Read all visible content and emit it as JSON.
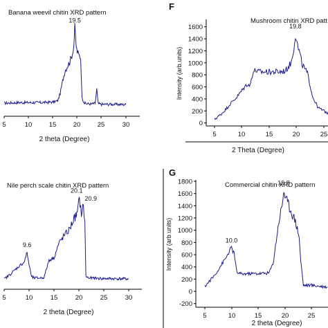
{
  "panel_letters": [
    "F",
    "G"
  ],
  "chart_data": [
    {
      "type": "line",
      "title": "Banana weevil chitin XRD pattern",
      "xlabel": "2 theta (Degree)",
      "ylabel": "",
      "xlim": [
        5,
        30
      ],
      "ylim": [
        0,
        1700
      ],
      "xticks": [
        "5",
        "10",
        "15",
        "20",
        "25",
        "30"
      ],
      "yticks": [],
      "peak_labels": [
        {
          "x": 19.5,
          "label": "19.5"
        }
      ],
      "color": "#1a1a8c",
      "series": [
        {
          "x": [
            5,
            8,
            10,
            12,
            14,
            15,
            16,
            16.5,
            17,
            17.5,
            18,
            18.5,
            19,
            19.3,
            19.5,
            19.8,
            20,
            20.3,
            20.7,
            21,
            21.5,
            22,
            23,
            23.7,
            24,
            24.3,
            25,
            27,
            30
          ],
          "y": [
            230,
            240,
            240,
            240,
            245,
            250,
            270,
            400,
            620,
            800,
            880,
            960,
            1100,
            1250,
            1550,
            1220,
            1130,
            1080,
            1030,
            320,
            230,
            220,
            215,
            230,
            480,
            220,
            210,
            210,
            205
          ]
        }
      ]
    },
    {
      "type": "line",
      "title": "Mushroom chitin XRD patt",
      "xlabel": "2 Theta (Degree)",
      "ylabel": "Intensity (arb.units)",
      "xlim": [
        3.5,
        27
      ],
      "ylim": [
        -50,
        1700
      ],
      "xticks": [
        "5",
        "10",
        "15",
        "20",
        "25"
      ],
      "yticks": [
        "0",
        "200",
        "400",
        "600",
        "800",
        "1000",
        "1200",
        "1400",
        "1600"
      ],
      "peak_labels": [
        {
          "x": 19.8,
          "label": "19.8"
        }
      ],
      "color": "#1a1a8c",
      "series": [
        {
          "x": [
            5,
            6,
            7,
            8,
            9,
            10,
            11,
            11.5,
            12,
            12.5,
            13,
            15,
            17,
            18,
            19,
            19.5,
            19.8,
            20.2,
            20.6,
            21,
            22,
            23,
            24,
            25,
            26,
            27
          ],
          "y": [
            60,
            130,
            220,
            330,
            420,
            540,
            650,
            620,
            840,
            880,
            850,
            850,
            850,
            870,
            1000,
            1250,
            1480,
            1280,
            1150,
            980,
            820,
            420,
            250,
            200,
            150,
            130
          ]
        }
      ]
    },
    {
      "type": "line",
      "title": "Nile perch scale chitin XRD pattern",
      "xlabel": "2 theta (Degree)",
      "ylabel": "",
      "xlim": [
        5,
        30
      ],
      "ylim": [
        0,
        1700
      ],
      "xticks": [
        "5",
        "10",
        "15",
        "20",
        "25",
        "30"
      ],
      "yticks": [],
      "peak_labels": [
        {
          "x": 9.6,
          "label": "9.6"
        },
        {
          "x": 20.1,
          "label": "20.1"
        },
        {
          "x": 20.9,
          "label": "20.9"
        }
      ],
      "color": "#1a1a8c",
      "series": [
        {
          "x": [
            5,
            6,
            7,
            8,
            9,
            9.6,
            10,
            10.5,
            11,
            12,
            13,
            14,
            15,
            16,
            17,
            18,
            19,
            19.7,
            20.1,
            20.5,
            20.9,
            21.2,
            21.4,
            22,
            25,
            30
          ],
          "y": [
            180,
            250,
            330,
            410,
            480,
            650,
            440,
            220,
            200,
            200,
            210,
            520,
            560,
            820,
            950,
            1050,
            1250,
            1350,
            1620,
            1350,
            1480,
            1200,
            230,
            200,
            190,
            185
          ]
        }
      ]
    },
    {
      "type": "line",
      "title": "Commercial chitin XRD pattern",
      "xlabel": "2 theta (Degree)",
      "ylabel": "Intensity (arb.units)",
      "xlim": [
        2.5,
        28
      ],
      "ylim": [
        -260,
        1800
      ],
      "xticks": [
        "5",
        "10",
        "15",
        "20",
        "25"
      ],
      "yticks": [
        "-200",
        "0",
        "200",
        "400",
        "600",
        "800",
        "1000",
        "1200",
        "1400",
        "1600",
        "1800"
      ],
      "peak_labels": [
        {
          "x": 10.0,
          "label": "10.0"
        },
        {
          "x": 19.8,
          "label": "19.8"
        }
      ],
      "color": "#1a1a8c",
      "series": [
        {
          "x": [
            5,
            6,
            7,
            8,
            9,
            9.5,
            10,
            10.5,
            11,
            12,
            13,
            15,
            17,
            17.8,
            18.5,
            19,
            19.5,
            19.8,
            20.3,
            21,
            22,
            22.7,
            23,
            23.5,
            25,
            27,
            28
          ],
          "y": [
            80,
            180,
            280,
            420,
            550,
            640,
            710,
            620,
            310,
            280,
            290,
            290,
            300,
            450,
            900,
            1200,
            1400,
            1650,
            1500,
            1350,
            1150,
            900,
            500,
            100,
            100,
            80,
            70
          ]
        }
      ]
    }
  ]
}
